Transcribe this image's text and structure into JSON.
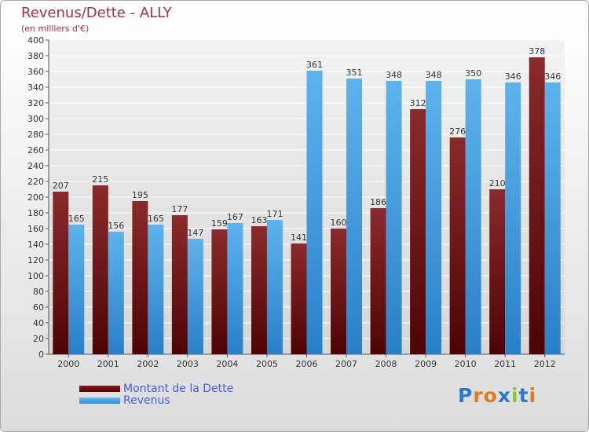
{
  "title": "Revenus/Dette - ALLY",
  "subtitle": "(en milliers d'€)",
  "chart_data": {
    "type": "bar",
    "categories": [
      "2000",
      "2001",
      "2002",
      "2003",
      "2004",
      "2005",
      "2006",
      "2007",
      "2008",
      "2009",
      "2010",
      "2011",
      "2012"
    ],
    "series": [
      {
        "name": "Montant de la Dette",
        "values": [
          207,
          215,
          195,
          177,
          159,
          163,
          141,
          160,
          186,
          312,
          276,
          210,
          378
        ],
        "color": "#6e0e10"
      },
      {
        "name": "Revenus",
        "values": [
          165,
          156,
          165,
          147,
          167,
          171,
          361,
          351,
          348,
          348,
          350,
          346,
          346
        ],
        "color": "#4aa3e4"
      }
    ],
    "ylim": [
      0,
      400
    ],
    "yticks": [
      0,
      20,
      40,
      60,
      80,
      100,
      120,
      140,
      160,
      180,
      200,
      220,
      240,
      260,
      280,
      300,
      320,
      340,
      360,
      380,
      400
    ],
    "grid": true
  },
  "legend": {
    "debt_label": "Montant de la Dette",
    "revenue_label": "Revenus"
  },
  "logo": {
    "text": "Proxiti",
    "letter_colors": [
      "#2f78c8",
      "#e07a1e",
      "#e07a1e",
      "#2f78c8",
      "#8bc53f",
      "#2f78c8",
      "#e07a1e"
    ]
  }
}
